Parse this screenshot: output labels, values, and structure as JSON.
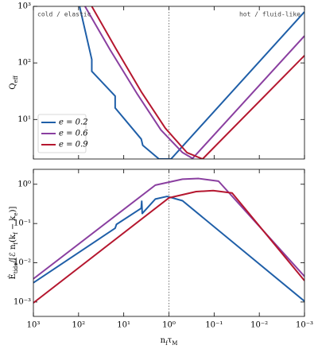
{
  "chart_data": [
    {
      "type": "line",
      "xscale": "log",
      "yscale": "log",
      "xlim": [
        1000,
        0.001
      ],
      "ylim": [
        2,
        1000
      ],
      "yticks": [
        {
          "value": 10,
          "label": "10¹"
        },
        {
          "value": 100,
          "label": "10²"
        },
        {
          "value": 1000,
          "label": "10³"
        }
      ],
      "ylabel": [
        {
          "text": "Q",
          "sub": false
        },
        {
          "text": "eff",
          "sub": true
        }
      ],
      "annotations": [
        "cold / elastic",
        "hot / fluid-like"
      ],
      "vline": 1,
      "legend": "lower left",
      "series": [
        {
          "name": "e = 0.2",
          "color": "#1f5fa8",
          "x": [
            95,
            51,
            51,
            15.5,
            15.5,
            4.1,
            3.8,
            1.66,
            0.9,
            0.001
          ],
          "values": [
            1000,
            115,
            71,
            26,
            16,
            4.5,
            3.5,
            2.0,
            2.0,
            800
          ]
        },
        {
          "name": "e = 0.6",
          "color": "#8a3fa0",
          "x": [
            72,
            20,
            5,
            1.5,
            0.5,
            0.3,
            0.001
          ],
          "values": [
            1000,
            170,
            28,
            6.5,
            2.6,
            2.05,
            300
          ]
        },
        {
          "name": "e = 0.9",
          "color": "#b5172f",
          "x": [
            51,
            15,
            4,
            1.2,
            0.4,
            0.18,
            0.001
          ],
          "values": [
            1000,
            180,
            30,
            7,
            2.6,
            2.0,
            135
          ]
        }
      ]
    },
    {
      "type": "line",
      "xscale": "log",
      "yscale": "log",
      "xlim": [
        1000,
        0.001
      ],
      "ylim": [
        0.00043,
        2.4
      ],
      "xticks": [
        {
          "value": 1000,
          "label": "10³"
        },
        {
          "value": 100,
          "label": "10²"
        },
        {
          "value": 10,
          "label": "10¹"
        },
        {
          "value": 1,
          "label": "10⁰"
        },
        {
          "value": 0.1,
          "label": "10⁻¹"
        },
        {
          "value": 0.01,
          "label": "10⁻²"
        },
        {
          "value": 0.001,
          "label": "10⁻³"
        }
      ],
      "yticks": [
        {
          "value": 0.001,
          "label": "10⁻³"
        },
        {
          "value": 0.01,
          "label": "10⁻²"
        },
        {
          "value": 0.1,
          "label": "10⁻¹"
        },
        {
          "value": 1,
          "label": "10⁰"
        }
      ],
      "xlabel": [
        {
          "text": "n",
          "sub": false
        },
        {
          "text": "f",
          "sub": true
        },
        {
          "text": "τ",
          "sub": false
        },
        {
          "text": "M",
          "sub": true
        }
      ],
      "ylabel": [
        {
          "text": "Ė",
          "sub": false
        },
        {
          "text": "tide",
          "sub": true
        },
        {
          "text": "/[ℰ n",
          "sub": false
        },
        {
          "text": "f",
          "sub": true
        },
        {
          "text": "(k",
          "sub": false
        },
        {
          "text": "f",
          "sub": true
        },
        {
          "text": " − k",
          "sub": false
        },
        {
          "text": "e",
          "sub": true
        },
        {
          "text": ")]",
          "sub": false
        }
      ],
      "vline": 1,
      "series": [
        {
          "name": "e = 0.2",
          "color": "#1f5fa8",
          "x": [
            1000,
            15.5,
            14.5,
            4.1,
            4.0,
            3.9,
            2,
            1.1,
            0.5,
            0.001
          ],
          "values": [
            0.0031,
            0.076,
            0.095,
            0.245,
            0.37,
            0.18,
            0.42,
            0.49,
            0.38,
            0.00105
          ]
        },
        {
          "name": "e = 0.6",
          "color": "#8a3fa0",
          "x": [
            1000,
            2,
            0.5,
            0.22,
            0.08,
            0.001
          ],
          "values": [
            0.0039,
            0.95,
            1.35,
            1.4,
            1.2,
            0.0045
          ]
        },
        {
          "name": "e = 0.9",
          "color": "#b5172f",
          "x": [
            1000,
            1,
            0.25,
            0.105,
            0.04,
            0.001
          ],
          "values": [
            0.00095,
            0.45,
            0.65,
            0.69,
            0.6,
            0.0035
          ]
        }
      ]
    }
  ]
}
